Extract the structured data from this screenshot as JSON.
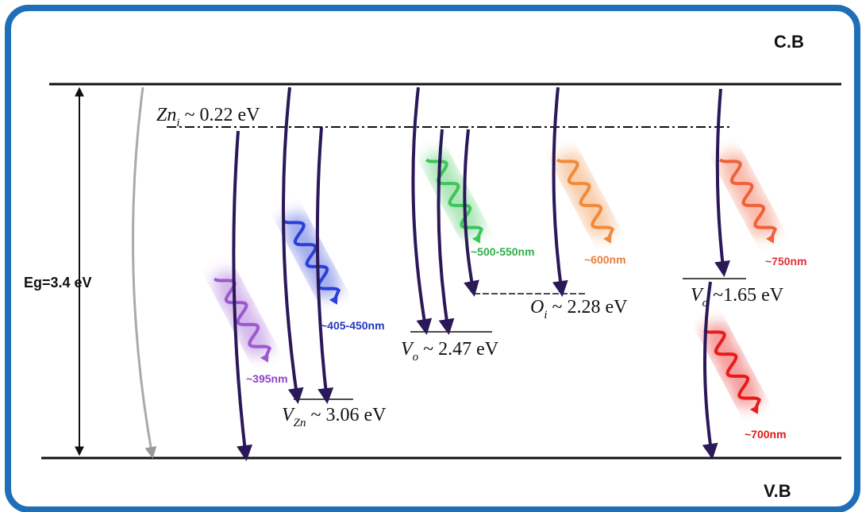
{
  "bands": {
    "conduction": "C.B",
    "valence": "V.B",
    "gap": "Eg=3.4 eV"
  },
  "levels": [
    {
      "symbol": "Zn",
      "subscript": "i",
      "energy": "~ 0.22 eV"
    },
    {
      "symbol": "V",
      "subscript": "Zn",
      "energy": "~ 3.06 eV"
    },
    {
      "symbol": "V",
      "subscript": "o",
      "energy": "~ 2.47 eV"
    },
    {
      "symbol": "O",
      "subscript": "i",
      "energy": "~ 2.28 eV"
    },
    {
      "symbol": "V",
      "subscript": "o",
      "energy": "~1.65 eV"
    }
  ],
  "emissions": [
    "~395nm",
    "~405-450nm",
    "~500-550nm",
    "~600nm",
    "~750nm",
    "~700nm"
  ]
}
